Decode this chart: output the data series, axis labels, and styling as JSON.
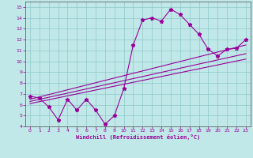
{
  "xlabel": "Windchill (Refroidissement éolien,°C)",
  "bg_color": "#c0e8e8",
  "line_color": "#990099",
  "xlim": [
    -0.5,
    23.5
  ],
  "ylim": [
    4,
    15.5
  ],
  "xticks": [
    0,
    1,
    2,
    3,
    4,
    5,
    6,
    7,
    8,
    9,
    10,
    11,
    12,
    13,
    14,
    15,
    16,
    17,
    18,
    19,
    20,
    21,
    22,
    23
  ],
  "yticks": [
    4,
    5,
    6,
    7,
    8,
    9,
    10,
    11,
    12,
    13,
    14,
    15
  ],
  "curve_x": [
    0,
    1,
    2,
    3,
    4,
    5,
    6,
    7,
    8,
    9,
    10,
    11,
    12,
    13,
    14,
    15,
    16,
    17,
    18,
    19,
    20,
    21,
    22,
    23
  ],
  "curve_y": [
    6.8,
    6.6,
    5.8,
    4.6,
    6.5,
    5.5,
    6.5,
    5.5,
    4.2,
    5.0,
    7.5,
    11.5,
    13.8,
    14.0,
    13.7,
    14.8,
    14.3,
    13.4,
    12.5,
    11.1,
    10.5,
    11.1,
    11.2,
    12.0
  ],
  "reg_lines": [
    {
      "x0": 0,
      "y0": 6.5,
      "x1": 23,
      "y1": 11.5
    },
    {
      "x0": 0,
      "y0": 6.3,
      "x1": 23,
      "y1": 10.7
    },
    {
      "x0": 0,
      "y0": 6.1,
      "x1": 23,
      "y1": 10.2
    }
  ]
}
